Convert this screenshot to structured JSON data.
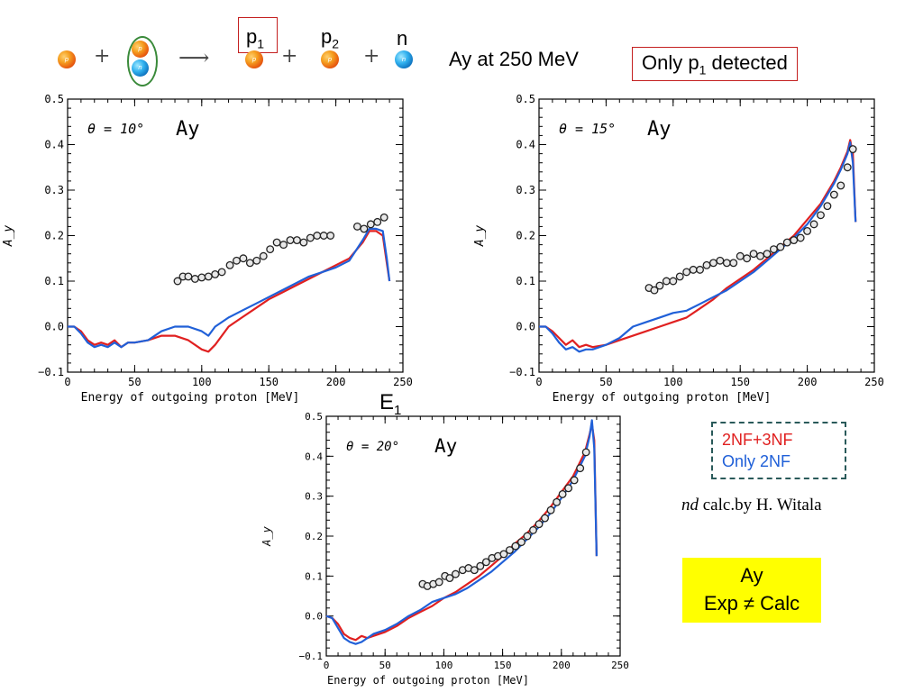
{
  "header": {
    "reaction_p1_label": "p",
    "reaction_p1_sub": "1",
    "reaction_p2_label": "p",
    "reaction_p2_sub": "2",
    "reaction_n_label": "n",
    "plus": "+",
    "arrow": "⟶",
    "particle_p": "p",
    "particle_n": "n",
    "title": "Ay at 250 MeV",
    "detected_main": "Only p",
    "detected_sub": "1",
    "detected_tail": " detected"
  },
  "legend": {
    "items": [
      {
        "label": "2NF+3NF",
        "color": "#e02020"
      },
      {
        "label": "Only 2NF",
        "color": "#2060d8"
      }
    ]
  },
  "credit": {
    "italic": "nd",
    "rest": " calc.by H. Witala"
  },
  "highlight": {
    "line1": "Ay",
    "line2": "Exp ≠ Calc",
    "color": "#ffff00"
  },
  "e1_label": {
    "main": "E",
    "sub": "1"
  },
  "chart_data": [
    {
      "type": "line",
      "angle_label": "θ = 10°",
      "inset_label": "Ay",
      "xlabel": "Energy of outgoing proton [MeV]",
      "ylabel": "A_y",
      "xlim": [
        0,
        250
      ],
      "ylim": [
        -0.1,
        0.5
      ],
      "xticks": [
        0,
        50,
        100,
        150,
        200,
        250
      ],
      "yticks": [
        "−0.1",
        "0.0",
        "0.1",
        "0.2",
        "0.3",
        "0.4",
        "0.5"
      ],
      "series": [
        {
          "name": "2NF+3NF",
          "color": "#e02020",
          "x": [
            0,
            5,
            10,
            15,
            20,
            25,
            30,
            35,
            40,
            45,
            50,
            60,
            70,
            80,
            90,
            100,
            105,
            110,
            120,
            130,
            140,
            150,
            160,
            170,
            180,
            190,
            200,
            210,
            220,
            225,
            230,
            235,
            238,
            240
          ],
          "y": [
            0,
            0,
            -0.01,
            -0.03,
            -0.04,
            -0.035,
            -0.04,
            -0.03,
            -0.045,
            -0.035,
            -0.035,
            -0.03,
            -0.02,
            -0.02,
            -0.03,
            -0.05,
            -0.055,
            -0.04,
            0.0,
            0.02,
            0.04,
            0.06,
            0.075,
            0.09,
            0.105,
            0.12,
            0.135,
            0.15,
            0.185,
            0.21,
            0.21,
            0.2,
            0.14,
            0.1
          ]
        },
        {
          "name": "Only 2NF",
          "color": "#2060d8",
          "x": [
            0,
            5,
            10,
            15,
            20,
            25,
            30,
            35,
            40,
            45,
            50,
            60,
            70,
            80,
            90,
            100,
            105,
            110,
            120,
            130,
            140,
            150,
            160,
            170,
            180,
            190,
            200,
            210,
            220,
            225,
            230,
            235,
            238,
            240
          ],
          "y": [
            0,
            0,
            -0.015,
            -0.035,
            -0.045,
            -0.04,
            -0.045,
            -0.035,
            -0.045,
            -0.035,
            -0.035,
            -0.03,
            -0.01,
            0.0,
            0.0,
            -0.01,
            -0.02,
            0.0,
            0.02,
            0.035,
            0.05,
            0.065,
            0.08,
            0.095,
            0.11,
            0.12,
            0.13,
            0.145,
            0.19,
            0.215,
            0.215,
            0.21,
            0.15,
            0.1
          ]
        }
      ],
      "points": {
        "x": [
          82,
          86,
          90,
          95,
          100,
          105,
          110,
          115,
          121,
          126,
          131,
          136,
          141,
          146,
          151,
          156,
          161,
          166,
          171,
          176,
          181,
          186,
          191,
          196,
          216,
          221,
          226,
          231,
          236
        ],
        "y": [
          0.1,
          0.11,
          0.11,
          0.105,
          0.108,
          0.11,
          0.115,
          0.12,
          0.135,
          0.145,
          0.15,
          0.14,
          0.145,
          0.155,
          0.17,
          0.185,
          0.18,
          0.19,
          0.19,
          0.185,
          0.195,
          0.2,
          0.2,
          0.2,
          0.22,
          0.215,
          0.225,
          0.23,
          0.24
        ]
      }
    },
    {
      "type": "line",
      "angle_label": "θ = 15°",
      "inset_label": "Ay",
      "xlabel": "Energy of outgoing proton [MeV]",
      "ylabel": "A_y",
      "xlim": [
        0,
        250
      ],
      "ylim": [
        -0.1,
        0.5
      ],
      "xticks": [
        0,
        50,
        100,
        150,
        200,
        250
      ],
      "yticks": [
        "−0.1",
        "0.0",
        "0.1",
        "0.2",
        "0.3",
        "0.4",
        "0.5"
      ],
      "series": [
        {
          "name": "2NF+3NF",
          "color": "#e02020",
          "x": [
            0,
            5,
            10,
            15,
            20,
            25,
            30,
            35,
            40,
            50,
            60,
            70,
            80,
            90,
            100,
            110,
            120,
            130,
            140,
            150,
            160,
            170,
            180,
            190,
            200,
            210,
            220,
            225,
            230,
            232,
            234,
            236
          ],
          "y": [
            0,
            0,
            -0.01,
            -0.025,
            -0.04,
            -0.03,
            -0.045,
            -0.04,
            -0.045,
            -0.04,
            -0.03,
            -0.02,
            -0.01,
            0.0,
            0.01,
            0.02,
            0.04,
            0.06,
            0.085,
            0.105,
            0.125,
            0.15,
            0.175,
            0.2,
            0.235,
            0.27,
            0.32,
            0.35,
            0.385,
            0.41,
            0.38,
            0.23
          ]
        },
        {
          "name": "Only 2NF",
          "color": "#2060d8",
          "x": [
            0,
            5,
            10,
            15,
            20,
            25,
            30,
            35,
            40,
            50,
            60,
            70,
            80,
            90,
            100,
            110,
            120,
            130,
            140,
            150,
            160,
            170,
            180,
            190,
            200,
            210,
            220,
            225,
            230,
            232,
            234,
            236
          ],
          "y": [
            0,
            0,
            -0.015,
            -0.035,
            -0.05,
            -0.045,
            -0.055,
            -0.05,
            -0.05,
            -0.04,
            -0.025,
            0.0,
            0.01,
            0.02,
            0.03,
            0.035,
            0.05,
            0.065,
            0.08,
            0.1,
            0.12,
            0.145,
            0.17,
            0.195,
            0.225,
            0.265,
            0.315,
            0.345,
            0.38,
            0.405,
            0.36,
            0.23
          ]
        }
      ],
      "points": {
        "x": [
          82,
          86,
          90,
          95,
          100,
          105,
          110,
          115,
          120,
          125,
          130,
          135,
          140,
          145,
          150,
          155,
          160,
          165,
          170,
          175,
          180,
          185,
          190,
          195,
          200,
          205,
          210,
          215,
          220,
          225,
          230,
          234
        ],
        "y": [
          0.085,
          0.08,
          0.09,
          0.1,
          0.1,
          0.11,
          0.12,
          0.125,
          0.125,
          0.135,
          0.14,
          0.145,
          0.14,
          0.14,
          0.155,
          0.15,
          0.16,
          0.155,
          0.16,
          0.17,
          0.175,
          0.185,
          0.19,
          0.195,
          0.21,
          0.225,
          0.245,
          0.265,
          0.29,
          0.31,
          0.35,
          0.39
        ]
      }
    },
    {
      "type": "line",
      "angle_label": "θ = 20°",
      "inset_label": "Ay",
      "xlabel": "Energy of outgoing proton [MeV]",
      "ylabel": "A_y",
      "xlim": [
        0,
        250
      ],
      "ylim": [
        -0.1,
        0.5
      ],
      "xticks": [
        0,
        50,
        100,
        150,
        200,
        250
      ],
      "yticks": [
        "−0.1",
        "0.0",
        "0.1",
        "0.2",
        "0.3",
        "0.4",
        "0.5"
      ],
      "series": [
        {
          "name": "2NF+3NF",
          "color": "#e02020",
          "x": [
            0,
            5,
            10,
            15,
            20,
            25,
            30,
            35,
            40,
            50,
            60,
            70,
            80,
            90,
            100,
            110,
            120,
            130,
            140,
            150,
            160,
            170,
            180,
            190,
            200,
            210,
            220,
            224,
            226,
            228,
            230
          ],
          "y": [
            0,
            -0.005,
            -0.02,
            -0.045,
            -0.055,
            -0.06,
            -0.05,
            -0.055,
            -0.05,
            -0.04,
            -0.025,
            -0.005,
            0.01,
            0.025,
            0.045,
            0.06,
            0.08,
            0.1,
            0.125,
            0.15,
            0.18,
            0.205,
            0.235,
            0.27,
            0.31,
            0.35,
            0.41,
            0.455,
            0.48,
            0.44,
            0.15
          ]
        },
        {
          "name": "Only 2NF",
          "color": "#2060d8",
          "x": [
            0,
            5,
            10,
            15,
            20,
            25,
            30,
            35,
            40,
            50,
            60,
            70,
            80,
            90,
            100,
            110,
            120,
            130,
            140,
            150,
            160,
            170,
            180,
            190,
            200,
            210,
            220,
            224,
            226,
            228,
            230
          ],
          "y": [
            0,
            -0.005,
            -0.03,
            -0.055,
            -0.065,
            -0.07,
            -0.065,
            -0.055,
            -0.045,
            -0.035,
            -0.02,
            0.0,
            0.015,
            0.035,
            0.045,
            0.055,
            0.07,
            0.09,
            0.11,
            0.135,
            0.16,
            0.19,
            0.22,
            0.255,
            0.295,
            0.34,
            0.4,
            0.45,
            0.49,
            0.42,
            0.15
          ]
        }
      ],
      "points": {
        "x": [
          82,
          86,
          91,
          96,
          101,
          105,
          110,
          116,
          121,
          126,
          131,
          136,
          141,
          146,
          151,
          156,
          161,
          166,
          171,
          176,
          181,
          186,
          191,
          196,
          201,
          206,
          211,
          216,
          221
        ],
        "y": [
          0.08,
          0.075,
          0.08,
          0.085,
          0.1,
          0.095,
          0.105,
          0.115,
          0.12,
          0.115,
          0.125,
          0.135,
          0.145,
          0.15,
          0.155,
          0.165,
          0.175,
          0.185,
          0.2,
          0.215,
          0.23,
          0.245,
          0.265,
          0.285,
          0.305,
          0.32,
          0.34,
          0.37,
          0.41
        ]
      }
    }
  ]
}
